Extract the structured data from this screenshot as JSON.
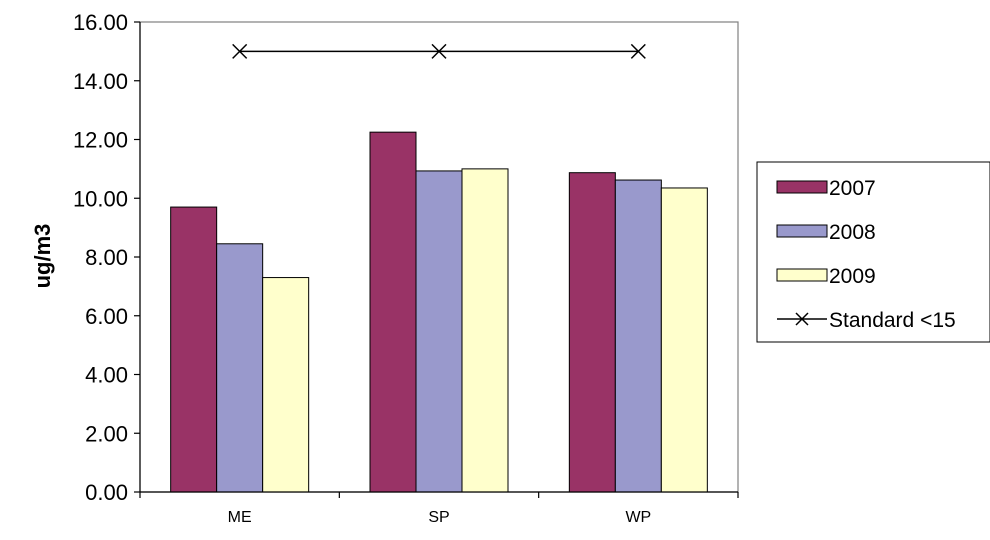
{
  "chart_data": {
    "type": "bar",
    "title": "",
    "xlabel": "",
    "ylabel": "ug/m3",
    "categories": [
      "ME",
      "SP",
      "WP"
    ],
    "ylim": [
      0,
      16
    ],
    "ytick_step": 2,
    "ytick_labels": [
      "0.00",
      "2.00",
      "4.00",
      "6.00",
      "8.00",
      "10.00",
      "12.00",
      "14.00",
      "16.00"
    ],
    "grid": false,
    "legend_position": "right",
    "series": [
      {
        "name": "2007",
        "type": "bar",
        "values": [
          9.7,
          12.25,
          10.87
        ],
        "color": "#993366"
      },
      {
        "name": "2008",
        "type": "bar",
        "values": [
          8.45,
          10.93,
          10.62
        ],
        "color": "#9999cc"
      },
      {
        "name": "2009",
        "type": "bar",
        "values": [
          7.3,
          11.0,
          10.35
        ],
        "color": "#ffffcc"
      },
      {
        "name": "Standard <15",
        "type": "line",
        "marker": "x",
        "values": [
          15,
          15,
          15
        ],
        "color": "#000000"
      }
    ]
  }
}
